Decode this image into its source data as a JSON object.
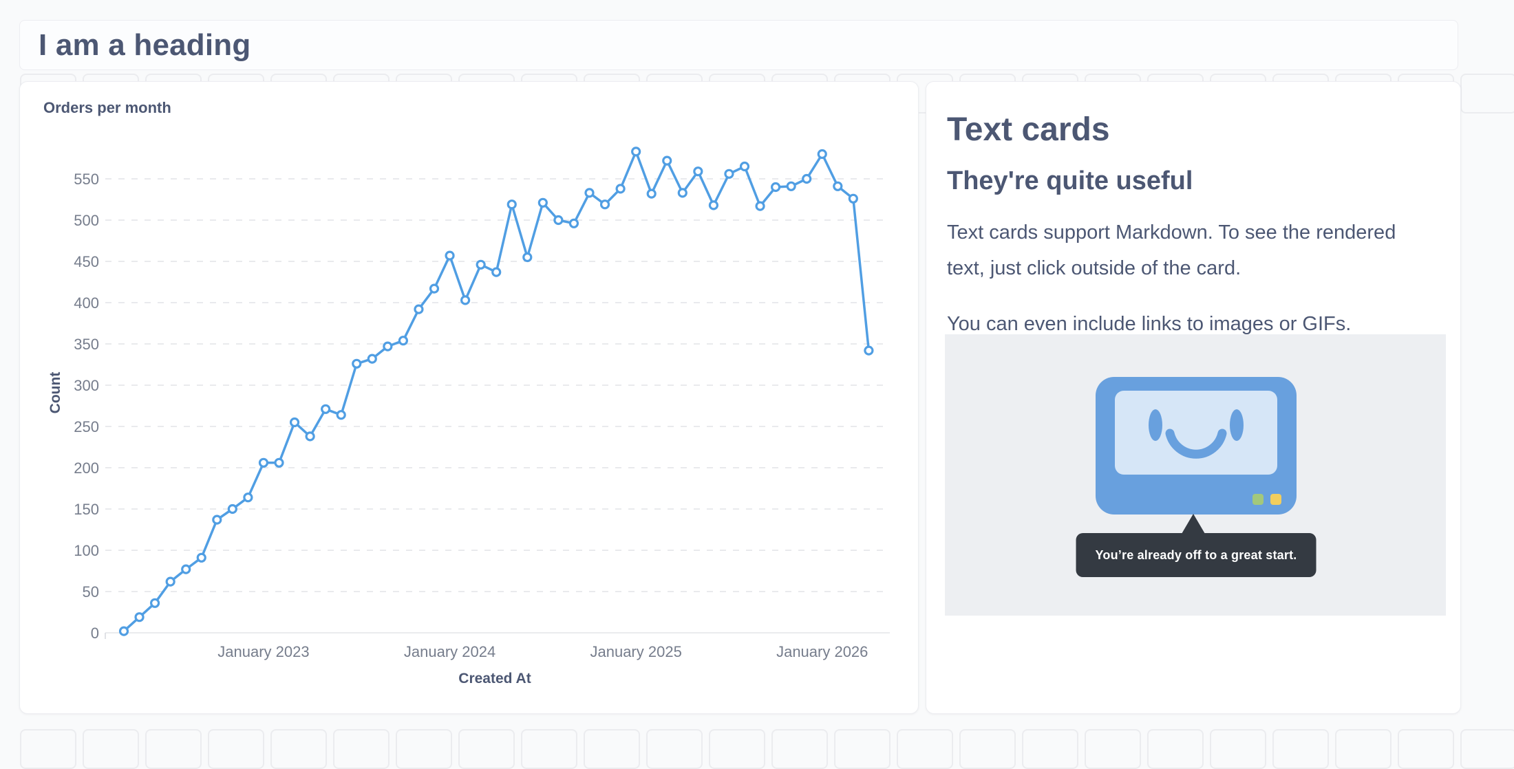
{
  "page": {
    "heading": "I am a heading",
    "background": "#F9FAFB"
  },
  "chart_card": {
    "title": "Orders per month"
  },
  "chart_data": {
    "type": "line",
    "title": "Orders per month",
    "xlabel": "Created At",
    "ylabel": "Count",
    "legend": "none",
    "grid": "horizontal-dashed",
    "line_color": "#509EE3",
    "marker": "open-circle",
    "ylim": [
      0,
      600
    ],
    "y_ticks": [
      0,
      50,
      100,
      150,
      200,
      250,
      300,
      350,
      400,
      450,
      500,
      550
    ],
    "x_axis_tick_labels": [
      {
        "index": 9,
        "label": "January 2023"
      },
      {
        "index": 21,
        "label": "January 2024"
      },
      {
        "index": 33,
        "label": "January 2025"
      },
      {
        "index": 45,
        "label": "January 2026"
      }
    ],
    "categories": [
      "Apr 2022",
      "May 2022",
      "Jun 2022",
      "Jul 2022",
      "Aug 2022",
      "Sep 2022",
      "Oct 2022",
      "Nov 2022",
      "Dec 2022",
      "Jan 2023",
      "Feb 2023",
      "Mar 2023",
      "Apr 2023",
      "May 2023",
      "Jun 2023",
      "Jul 2023",
      "Aug 2023",
      "Sep 2023",
      "Oct 2023",
      "Nov 2023",
      "Dec 2023",
      "Jan 2024",
      "Feb 2024",
      "Mar 2024",
      "Apr 2024",
      "May 2024",
      "Jun 2024",
      "Jul 2024",
      "Aug 2024",
      "Sep 2024",
      "Oct 2024",
      "Nov 2024",
      "Dec 2024",
      "Jan 2025",
      "Feb 2025",
      "Mar 2025",
      "Apr 2025",
      "May 2025",
      "Jun 2025",
      "Jul 2025",
      "Aug 2025",
      "Sep 2025",
      "Oct 2025",
      "Nov 2025",
      "Dec 2025",
      "Jan 2026",
      "Feb 2026",
      "Mar 2026",
      "Apr 2026"
    ],
    "values": [
      2,
      19,
      36,
      62,
      77,
      91,
      137,
      150,
      164,
      206,
      206,
      255,
      238,
      271,
      264,
      326,
      332,
      347,
      354,
      392,
      417,
      457,
      403,
      446,
      437,
      519,
      455,
      521,
      500,
      496,
      533,
      519,
      538,
      583,
      532,
      572,
      533,
      559,
      518,
      556,
      565,
      517,
      540,
      541,
      550,
      580,
      541,
      526,
      342
    ]
  },
  "text_card": {
    "title": "Text cards",
    "subtitle": "They're quite useful",
    "paragraphs": [
      "Text cards support Markdown. To see the rendered text, just click outside of the card.",
      "You can even include links to images or GIFs."
    ],
    "illustration": {
      "name": "smiling-monitor",
      "tooltip": "You’re already off to a great start.",
      "colors": {
        "background": "#EDEFF2",
        "frame": "#68A0DE",
        "screen": "#D6E6F7",
        "button_green": "#A3C87C",
        "button_yellow": "#F2CE5E",
        "tooltip_bg": "#343A42"
      }
    }
  },
  "colors": {
    "accent_blue": "#509EE3",
    "heading_text": "#4C5773",
    "tick_text": "#767D8C",
    "gridline": "#E2E3E7",
    "grid_cell_border": "#EBECEF",
    "card_bg": "#FFFFFF"
  }
}
